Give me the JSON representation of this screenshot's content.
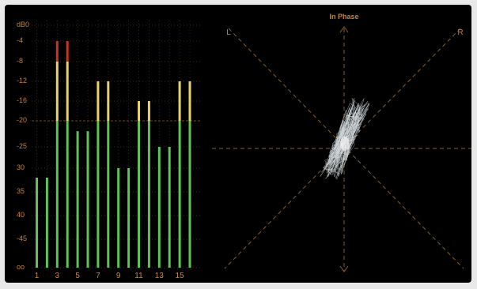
{
  "meter": {
    "scale_labels": [
      "dB0",
      "-4",
      "-8",
      "-12",
      "-16",
      "-20",
      "-25",
      "30",
      "35",
      "40",
      "-45",
      "oo"
    ],
    "channel_labels": [
      "1",
      "3",
      "5",
      "7",
      "9",
      "11",
      "13",
      "15"
    ],
    "channel_levels_db": [
      -32,
      -32,
      -4,
      -4,
      -22,
      -22,
      -12,
      -12,
      -30,
      -30,
      -16,
      -16,
      -25,
      -25,
      -12,
      -12
    ],
    "colors": {
      "green": "#5dc455",
      "yellow": "#e8d36b",
      "red": "#c8322e",
      "label": "#c8823a"
    }
  },
  "scope": {
    "title": "In Phase",
    "left_label": "L",
    "right_label": "R",
    "line_color": "#8a5e2e"
  }
}
